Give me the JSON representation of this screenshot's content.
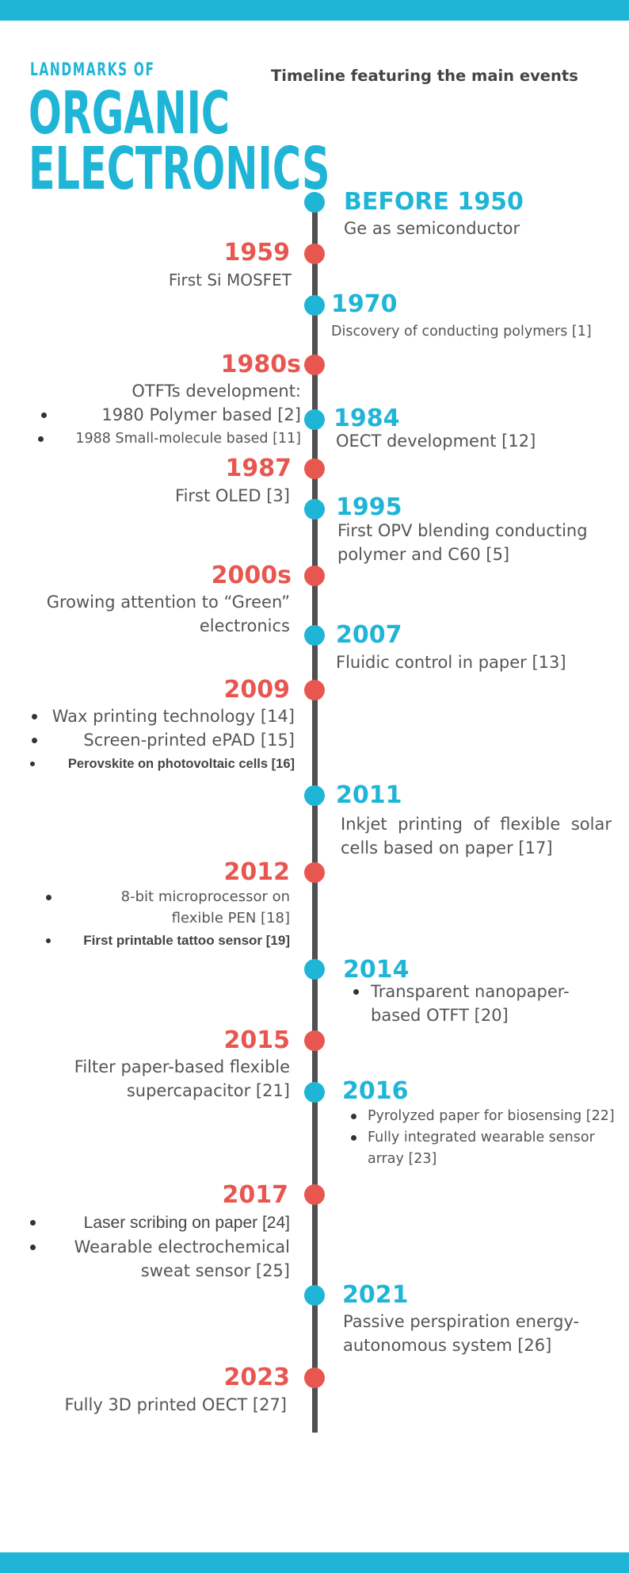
{
  "header": {
    "kicker": "LANDMARKS OF",
    "title_line1": "ORGANIC",
    "title_line2": "ELECTRONICS",
    "subtitle": "Timeline featuring the main events"
  },
  "colors": {
    "accent_blue": "#1fb5d6",
    "accent_red": "#e8574f",
    "axis": "#505050",
    "text": "#555555"
  },
  "events": {
    "e1950": {
      "year": "BEFORE 1950",
      "text": "Ge as semiconductor"
    },
    "e1959": {
      "year": "1959",
      "text": "First Si MOSFET"
    },
    "e1970": {
      "year": "1970",
      "text": "Discovery of conducting polymers [1]"
    },
    "e1980s": {
      "year": "1980s",
      "heading": "OTFTs development:",
      "items": [
        "1980 Polymer based [2]",
        "1988 Small-molecule based [11]"
      ]
    },
    "e1984": {
      "year": "1984",
      "text": "OECT development [12]"
    },
    "e1987": {
      "year": "1987",
      "text": "First OLED [3]"
    },
    "e1995": {
      "year": "1995",
      "lines": [
        "First OPV blending conducting",
        "polymer and C60 [5]"
      ]
    },
    "e2000s": {
      "year": "2000s",
      "lines": [
        "Growing attention to “Green”",
        "electronics"
      ]
    },
    "e2007": {
      "year": "2007",
      "text": "Fluidic control in paper [13]"
    },
    "e2009": {
      "year": "2009",
      "items": [
        "Wax printing technology [14]",
        "Screen-printed ePAD [15]",
        "Perovskite on photovoltaic cells [16]"
      ]
    },
    "e2011": {
      "year": "2011",
      "lines": [
        "Inkjet printing of flexible solar",
        "cells based on paper [17]"
      ]
    },
    "e2012": {
      "year": "2012",
      "item1_lines": [
        "8-bit microprocessor on",
        "flexible PEN [18]"
      ],
      "item2": "First printable tattoo sensor [19]"
    },
    "e2014": {
      "year": "2014",
      "item_lines": [
        "Transparent nanopaper-",
        "based OTFT [20]"
      ]
    },
    "e2015": {
      "year": "2015",
      "lines": [
        "Filter paper-based flexible",
        "supercapacitor [21]"
      ]
    },
    "e2016": {
      "year": "2016",
      "item1": "Pyrolyzed paper for biosensing [22]",
      "item2_lines": [
        "Fully integrated wearable sensor",
        "array [23]"
      ]
    },
    "e2017": {
      "year": "2017",
      "item1": "Laser scribing on paper [24]",
      "item2_lines": [
        "Wearable electrochemical",
        "sweat sensor [25]"
      ]
    },
    "e2021": {
      "year": "2021",
      "lines": [
        "Passive perspiration energy-",
        "autonomous system [26]"
      ]
    },
    "e2023": {
      "year": "2023",
      "text": "Fully 3D printed OECT [27]"
    }
  }
}
